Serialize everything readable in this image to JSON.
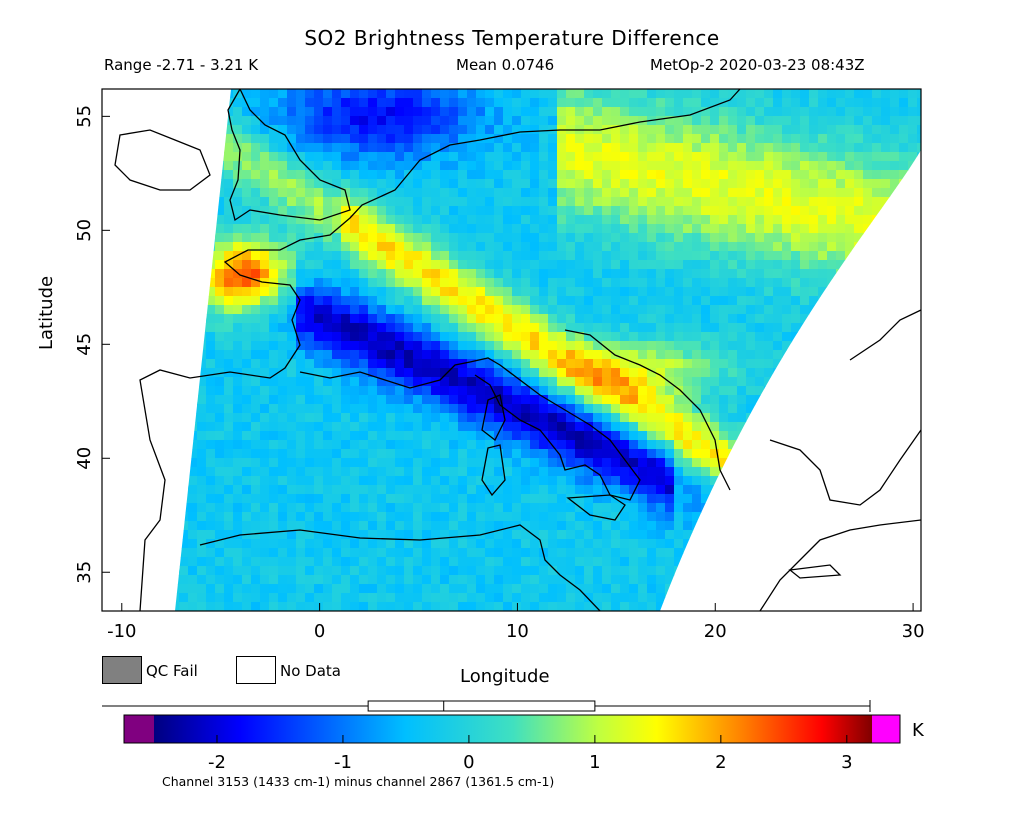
{
  "title": "SO2 Brightness Temperature Difference",
  "header": {
    "range": "Range -2.71 - 3.21 K",
    "mean": "Mean 0.0746",
    "satellite": "MetOp-2 2020-03-23 08:43Z"
  },
  "axes": {
    "ylabel": "Latitude",
    "xlabel": "Longitude",
    "x_ticks": [
      "-10",
      "0",
      "10",
      "20",
      "30"
    ],
    "y_ticks": [
      "55",
      "50",
      "45",
      "40",
      "35"
    ],
    "xlim": [
      -11,
      30.4
    ],
    "ylim": [
      33.3,
      56.2
    ]
  },
  "legend": {
    "qc_fail": "QC Fail",
    "no_data": "No Data",
    "qc_fail_color": "#808080",
    "no_data_color": "#ffffff"
  },
  "colorbar": {
    "unit": "K",
    "ticks": [
      "-2",
      "-1",
      "0",
      "1",
      "2",
      "3"
    ],
    "range": [
      -2.5,
      3.2
    ],
    "under_color": "#800080",
    "over_color": "#ff00ff",
    "note": "Channel 3153 (1433 cm-1) minus channel 2867 (1361.5 cm-1)",
    "boxplot": {
      "min": -2.71,
      "q1": -0.8,
      "median": -0.2,
      "q3": 1.0,
      "max": 3.21
    }
  },
  "chart_data": {
    "type": "heatmap",
    "title": "SO2 Brightness Temperature Difference",
    "xlabel": "Longitude",
    "ylabel": "Latitude",
    "xlim": [
      -11,
      30.4
    ],
    "ylim": [
      33.3,
      56.2
    ],
    "value_range": [
      -2.71,
      3.21
    ],
    "mean": 0.0746,
    "unit": "K",
    "swath_features": [
      {
        "feature": "high BTD band over Brittany / Bay of Biscay",
        "value": 3.0
      },
      {
        "feature": "high BTD band over Adriatic / Balkans",
        "value": 2.3
      },
      {
        "feature": "low BTD band over Gulf of Lion to southern Italy",
        "value": -1.8
      }
    ]
  }
}
